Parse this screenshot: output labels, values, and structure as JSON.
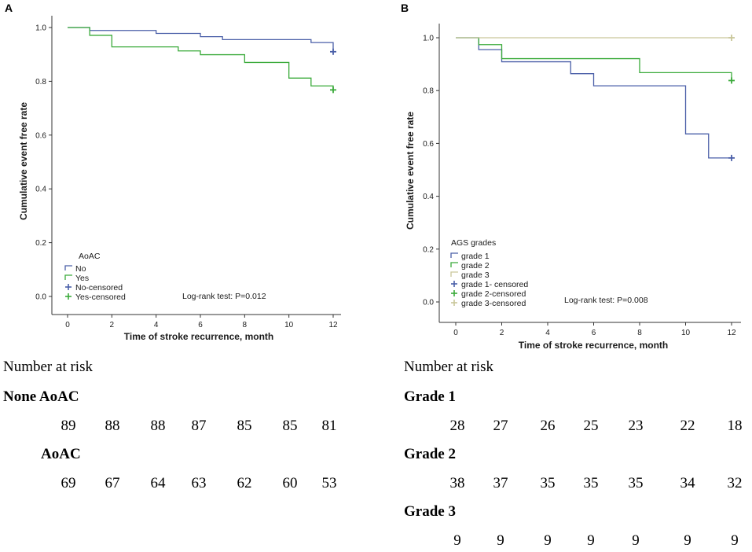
{
  "colors": {
    "blue": "#4a5fa8",
    "green": "#3aaa3a",
    "tan": "#c9c79a",
    "axis": "#333333"
  },
  "chart_data": [
    {
      "panel": "A",
      "type": "line",
      "subtype": "kaplan-meier-step",
      "xlabel": "Time of stroke recurrence, month",
      "ylabel": "Cumulative event free rate",
      "xlim": [
        0,
        12
      ],
      "ylim": [
        0,
        1
      ],
      "xticks": [
        "0",
        "2",
        "4",
        "6",
        "8",
        "10",
        "12"
      ],
      "yticks": [
        "0.0",
        "0.2",
        "0.4",
        "0.6",
        "0.8",
        "1.0"
      ],
      "legend_title": "AoAC",
      "legend": [
        "No",
        "Yes",
        "No-censored",
        "Yes-censored"
      ],
      "annotation": "Log-rank test: P=0.012",
      "series": [
        {
          "name": "No",
          "color_key": "blue",
          "steps": [
            [
              0,
              1.0
            ],
            [
              1,
              0.989
            ],
            [
              4,
              0.978
            ],
            [
              6,
              0.966
            ],
            [
              7,
              0.955
            ],
            [
              11,
              0.944
            ],
            [
              12,
              0.91
            ]
          ],
          "censored": [
            [
              12,
              0.91
            ]
          ]
        },
        {
          "name": "Yes",
          "color_key": "green",
          "steps": [
            [
              0,
              1.0
            ],
            [
              1,
              0.971
            ],
            [
              2,
              0.928
            ],
            [
              5,
              0.913
            ],
            [
              6,
              0.899
            ],
            [
              8,
              0.87
            ],
            [
              10,
              0.812
            ],
            [
              11,
              0.783
            ],
            [
              12,
              0.768
            ]
          ],
          "censored": [
            [
              12,
              0.768
            ]
          ]
        }
      ]
    },
    {
      "panel": "B",
      "type": "line",
      "subtype": "kaplan-meier-step",
      "xlabel": "Time of stroke recurrence, month",
      "ylabel": "Cumulative event free rate",
      "xlim": [
        0,
        12
      ],
      "ylim": [
        0,
        1
      ],
      "xticks": [
        "0",
        "2",
        "4",
        "6",
        "8",
        "10",
        "12"
      ],
      "yticks": [
        "0.0",
        "0.2",
        "0.4",
        "0.6",
        "0.8",
        "1.0"
      ],
      "legend_title": "AGS grades",
      "legend": [
        "grade 1",
        "grade 2",
        "grade 3",
        "grade 1- censored",
        "grade 2-censored",
        "grade 3-censored"
      ],
      "annotation": "Log-rank test: P=0.008",
      "series": [
        {
          "name": "grade 1",
          "color_key": "blue",
          "steps": [
            [
              0,
              1.0
            ],
            [
              1,
              0.955
            ],
            [
              2,
              0.909
            ],
            [
              5,
              0.864
            ],
            [
              6,
              0.818
            ],
            [
              10,
              0.636
            ],
            [
              11,
              0.545
            ],
            [
              12,
              0.545
            ]
          ],
          "censored": [
            [
              12,
              0.545
            ]
          ]
        },
        {
          "name": "grade 2",
          "color_key": "green",
          "steps": [
            [
              0,
              1.0
            ],
            [
              1,
              0.974
            ],
            [
              2,
              0.921
            ],
            [
              8,
              0.868
            ],
            [
              12,
              0.838
            ]
          ],
          "censored": [
            [
              12,
              0.838
            ]
          ]
        },
        {
          "name": "grade 3",
          "color_key": "tan",
          "steps": [
            [
              0,
              1.0
            ],
            [
              12,
              1.0
            ]
          ],
          "censored": [
            [
              12,
              1.0
            ]
          ]
        }
      ]
    }
  ],
  "risk_table_a": {
    "heading": "Number at risk",
    "groups": [
      {
        "label": "None AoAC",
        "values": [
          "89",
          "88",
          "88",
          "87",
          "85",
          "85",
          "81"
        ]
      },
      {
        "label": "AoAC",
        "values": [
          "69",
          "67",
          "64",
          "63",
          "62",
          "60",
          "53"
        ]
      }
    ]
  },
  "risk_table_b": {
    "heading": "Number at risk",
    "groups": [
      {
        "label": "Grade 1",
        "values": [
          "28",
          "27",
          "26",
          "25",
          "23",
          "22",
          "18"
        ]
      },
      {
        "label": "Grade 2",
        "values": [
          "38",
          "37",
          "35",
          "35",
          "35",
          "34",
          "32"
        ]
      },
      {
        "label": "Grade 3",
        "values": [
          "9",
          "9",
          "9",
          "9",
          "9",
          "9",
          "9"
        ]
      }
    ]
  }
}
